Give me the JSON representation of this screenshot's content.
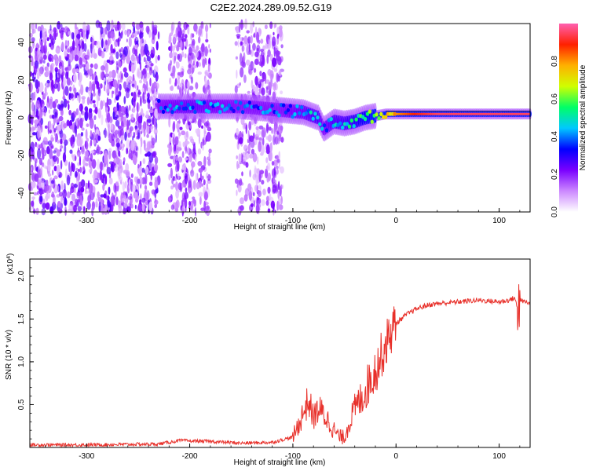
{
  "title": "C2E2.2024.289.09.52.G19",
  "chart_data": [
    {
      "type": "heatmap",
      "xlabel": "Height of straight line (km)",
      "ylabel": "Frequency (Hz)",
      "xlim": [
        -355,
        130
      ],
      "ylim": [
        -50,
        50
      ],
      "x_ticks": [
        -300,
        -200,
        -100,
        0,
        100
      ],
      "x_tick_labels": [
        "-300",
        "-200",
        "-100",
        "0",
        "100"
      ],
      "y_ticks": [
        -40,
        -20,
        0,
        20,
        40
      ],
      "y_tick_labels": [
        "-40",
        "-20",
        "0",
        "20",
        "40"
      ],
      "colorbar": {
        "label": "Normalized spectral amplitude",
        "range": [
          0,
          1
        ],
        "ticks": [
          0.0,
          0.2,
          0.4,
          0.6,
          0.8
        ],
        "tick_labels": [
          "0.0",
          "0.2",
          "0.4",
          "0.6",
          "0.8"
        ],
        "colormap": [
          "#ffffff",
          "#cc88ff",
          "#7a00ff",
          "#0000ff",
          "#00c8ff",
          "#00ff66",
          "#d0ff00",
          "#ffb000",
          "#ff2000",
          "#ff60b0"
        ]
      },
      "ridge": {
        "x": [
          -230,
          -200,
          -150,
          -110,
          -90,
          -75,
          -70,
          -60,
          -50,
          -40,
          -30,
          -20,
          -10,
          0,
          20,
          40,
          60,
          80,
          100,
          130
        ],
        "y": [
          6,
          6,
          6,
          4,
          3,
          0,
          -6,
          -2,
          -3,
          -2,
          0,
          1,
          2,
          2,
          2,
          2,
          2,
          2,
          2,
          2
        ],
        "amplitude": [
          0.35,
          0.4,
          0.35,
          0.35,
          0.4,
          0.45,
          0.35,
          0.45,
          0.45,
          0.5,
          0.55,
          0.6,
          0.7,
          0.8,
          0.9,
          0.95,
          0.95,
          0.95,
          0.95,
          0.95
        ]
      },
      "noise_regions": [
        [
          -355,
          -230
        ],
        [
          -220,
          -180
        ],
        [
          -155,
          -110
        ]
      ]
    },
    {
      "type": "line",
      "xlabel": "Height of straight line (km)",
      "ylabel": "SNR (10 * v/v)",
      "y_multiplier_label": "(x10",
      "y_multiplier_exp": "4",
      "y_multiplier_close": ")",
      "xlim": [
        -355,
        130
      ],
      "ylim": [
        0,
        2.2
      ],
      "x_ticks": [
        -300,
        -200,
        -100,
        0,
        100
      ],
      "x_tick_labels": [
        "-300",
        "-200",
        "-100",
        "0",
        "100"
      ],
      "y_ticks": [
        0.5,
        1.0,
        1.5,
        2.0
      ],
      "y_tick_labels": [
        "0.5",
        "1.0",
        "1.5",
        "2.0"
      ],
      "color": "#e8302a",
      "series": [
        {
          "x": [
            -355,
            -300,
            -230,
            -220,
            -210,
            -180,
            -150,
            -120,
            -100,
            -95,
            -90,
            -85,
            -80,
            -75,
            -70,
            -65,
            -60,
            -55,
            -50,
            -45,
            -40,
            -35,
            -30,
            -25,
            -20,
            -15,
            -10,
            -5,
            0,
            10,
            20,
            30,
            40,
            60,
            80,
            100,
            110,
            115,
            118,
            120,
            125,
            130
          ],
          "y": [
            0.03,
            0.03,
            0.04,
            0.06,
            0.08,
            0.07,
            0.05,
            0.06,
            0.12,
            0.25,
            0.4,
            0.55,
            0.35,
            0.45,
            0.38,
            0.3,
            0.2,
            0.12,
            0.12,
            0.3,
            0.45,
            0.55,
            0.65,
            0.8,
            0.9,
            1.05,
            1.2,
            1.35,
            1.45,
            1.55,
            1.62,
            1.66,
            1.68,
            1.7,
            1.72,
            1.7,
            1.72,
            1.75,
            1.6,
            1.72,
            1.7,
            1.68
          ]
        }
      ]
    }
  ]
}
